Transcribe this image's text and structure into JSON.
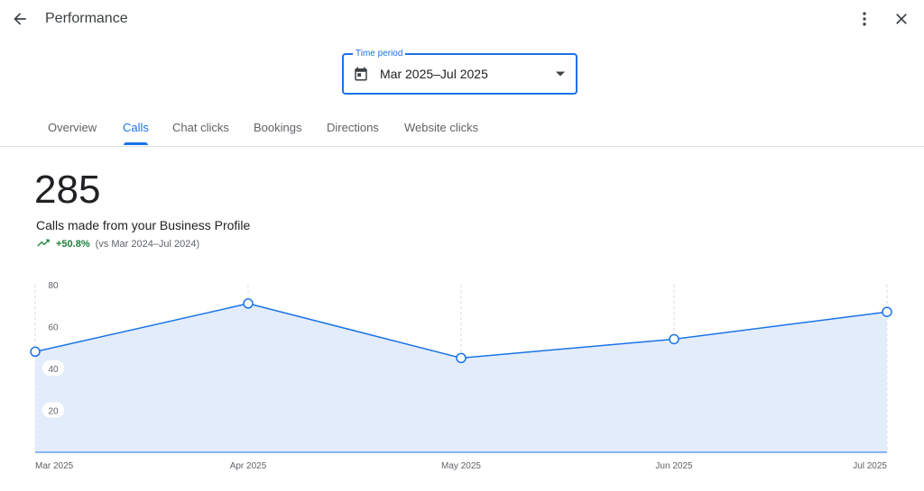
{
  "header": {
    "title": "Performance",
    "back_icon": "arrow-back-icon",
    "more_icon": "more-vert-icon",
    "close_icon": "close-icon"
  },
  "time_period": {
    "label": "Time period",
    "value": "Mar 2025–Jul 2025",
    "icon": "calendar-icon"
  },
  "tabs": [
    {
      "label": "Overview",
      "active": false
    },
    {
      "label": "Calls",
      "active": true
    },
    {
      "label": "Chat clicks",
      "active": false
    },
    {
      "label": "Bookings",
      "active": false
    },
    {
      "label": "Directions",
      "active": false
    },
    {
      "label": "Website clicks",
      "active": false
    }
  ],
  "metric": {
    "value": "285",
    "description": "Calls made from your Business Profile",
    "change": "+50.8%",
    "comparison": "(vs Mar 2024–Jul 2024)",
    "trend_icon": "trending-up-icon"
  },
  "colors": {
    "accent": "#1a73e8",
    "positive": "#188038",
    "area_fill": "#e3ecfb"
  },
  "chart_data": {
    "type": "area",
    "categories": [
      "Mar 2025",
      "Apr 2025",
      "May 2025",
      "Jun 2025",
      "Jul 2025"
    ],
    "values": [
      48,
      71,
      45,
      54,
      67
    ],
    "y_ticks": [
      20,
      40,
      60,
      80
    ],
    "ylim": [
      0,
      80
    ],
    "grid": "vertical dashed"
  }
}
